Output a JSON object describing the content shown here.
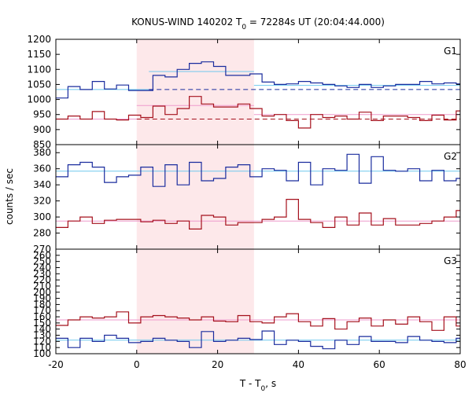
{
  "chart_data": [
    {
      "type": "line",
      "title": "KONUS-WIND 140202 T0 = 72284s UT (20:04:44.000)",
      "title_parts": {
        "prefix": "KONUS-WIND 140202 T",
        "sub": "0",
        "suffix": " = 72284s UT (20:04:44.000)"
      },
      "xlabel": "T - T0, s",
      "xlabel_parts": {
        "prefix": "T - T",
        "sub": "0",
        "suffix": ", s"
      },
      "ylabel": "counts / sec",
      "xlim": [
        -20,
        80
      ],
      "xticks": [
        -20,
        0,
        20,
        40,
        60,
        80
      ],
      "xtick_labels": [
        "-20",
        "0",
        "20",
        "40",
        "60",
        "80"
      ],
      "bin_edges": [
        -20,
        -17,
        -14,
        -11,
        -8,
        -5,
        -2,
        1,
        4,
        7,
        10,
        13,
        16,
        19,
        22,
        25,
        28,
        31,
        34,
        37,
        40,
        43,
        46,
        49,
        52,
        55,
        58,
        61,
        64,
        67,
        70,
        73,
        76,
        79,
        80
      ],
      "highlight_interval": [
        0,
        29
      ],
      "colors": {
        "blue": "#1a2c9e",
        "red": "#a5101c",
        "fit_cyan": "#6ec8ee",
        "fit_pink": "#ee9acc",
        "highlight": "#fde8ea"
      },
      "panels": [
        {
          "label": "G1",
          "ylim": [
            850,
            1200
          ],
          "yticks": [
            850,
            900,
            950,
            1000,
            1050,
            1100,
            1150,
            1200
          ],
          "ytick_labels": [
            "850",
            "900",
            "950",
            "1000",
            "1050",
            "1100",
            "1150",
            "1200"
          ],
          "series": [
            {
              "color": "blue",
              "values": [
                1005,
                1043,
                1033,
                1060,
                1035,
                1048,
                1030,
                1030,
                1080,
                1075,
                1100,
                1120,
                1125,
                1110,
                1080,
                1080,
                1085,
                1058,
                1050,
                1052,
                1060,
                1055,
                1050,
                1045,
                1040,
                1050,
                1040,
                1045,
                1050,
                1050,
                1060,
                1052,
                1055,
                1052
              ]
            },
            {
              "color": "red",
              "values": [
                935,
                945,
                935,
                960,
                935,
                932,
                948,
                940,
                978,
                950,
                970,
                1010,
                985,
                975,
                975,
                985,
                970,
                945,
                950,
                930,
                905,
                950,
                940,
                945,
                935,
                958,
                930,
                945,
                945,
                940,
                930,
                948,
                932,
                962
              ]
            }
          ],
          "fits": [
            {
              "color": "fit_cyan",
              "style": "solid",
              "segments": [
                [
                  -20,
                  3,
                  1033
                ],
                [
                  3,
                  29,
                  1093
                ],
                [
                  29,
                  80,
                  1047
                ]
              ]
            },
            {
              "color": "blue",
              "style": "dashed",
              "segments": [
                [
                  3,
                  80,
                  1033
                ]
              ]
            },
            {
              "color": "fit_pink",
              "style": "solid",
              "segments": [
                [
                  -20,
                  0,
                  935
                ],
                [
                  0,
                  29,
                  980
                ],
                [
                  29,
                  80,
                  950
                ]
              ]
            },
            {
              "color": "red",
              "style": "dashed",
              "segments": [
                [
                  0,
                  80,
                  935
                ]
              ]
            }
          ]
        },
        {
          "label": "G2",
          "ylim": [
            260,
            390
          ],
          "yticks": [
            280,
            300,
            320,
            340,
            360,
            380
          ],
          "ytick_labels": [
            "280",
            "300",
            "320",
            "340",
            "360",
            "380"
          ],
          "series": [
            {
              "color": "blue",
              "values": [
                350,
                365,
                368,
                362,
                343,
                350,
                352,
                362,
                338,
                365,
                340,
                368,
                345,
                348,
                362,
                365,
                350,
                360,
                358,
                345,
                368,
                340,
                360,
                358,
                378,
                342,
                375,
                358,
                357,
                360,
                345,
                358,
                345,
                348
              ]
            },
            {
              "color": "red",
              "values": [
                287,
                295,
                300,
                292,
                296,
                297,
                297,
                294,
                296,
                292,
                295,
                285,
                302,
                300,
                290,
                293,
                293,
                297,
                300,
                322,
                297,
                293,
                287,
                300,
                290,
                305,
                290,
                298,
                290,
                290,
                292,
                295,
                300,
                308
              ]
            }
          ],
          "fits": [
            {
              "color": "fit_cyan",
              "style": "solid",
              "segments": [
                [
                  -20,
                  80,
                  357
                ]
              ]
            },
            {
              "color": "fit_pink",
              "style": "solid",
              "segments": [
                [
                  -20,
                  80,
                  295
                ]
              ]
            }
          ]
        },
        {
          "label": "G3",
          "ylim": [
            100,
            270
          ],
          "yticks": [
            100,
            110,
            120,
            130,
            140,
            150,
            160,
            170,
            180,
            190,
            200,
            210,
            220,
            230,
            240,
            250,
            260,
            270
          ],
          "ytick_labels": [
            "100",
            "110",
            "120",
            "130",
            "140",
            "150",
            "160",
            "170",
            "180",
            "190",
            "200",
            "210",
            "220",
            "230",
            "240",
            "250",
            "260",
            "270"
          ],
          "series": [
            {
              "color": "red",
              "values": [
                146,
                155,
                160,
                158,
                160,
                168,
                150,
                160,
                162,
                160,
                158,
                155,
                160,
                153,
                152,
                162,
                152,
                150,
                160,
                165,
                152,
                145,
                157,
                140,
                152,
                158,
                145,
                155,
                148,
                160,
                152,
                138,
                160,
                145
              ]
            },
            {
              "color": "blue",
              "values": [
                125,
                110,
                125,
                120,
                130,
                125,
                118,
                120,
                125,
                122,
                120,
                110,
                136,
                120,
                122,
                125,
                123,
                137,
                115,
                122,
                120,
                112,
                108,
                122,
                115,
                128,
                120,
                120,
                118,
                128,
                122,
                120,
                118,
                125
              ]
            }
          ],
          "fits": [
            {
              "color": "fit_pink",
              "style": "solid",
              "segments": [
                [
                  -20,
                  80,
                  155
                ]
              ]
            },
            {
              "color": "fit_cyan",
              "style": "solid",
              "segments": [
                [
                  -20,
                  80,
                  122
                ]
              ]
            }
          ]
        }
      ]
    }
  ]
}
